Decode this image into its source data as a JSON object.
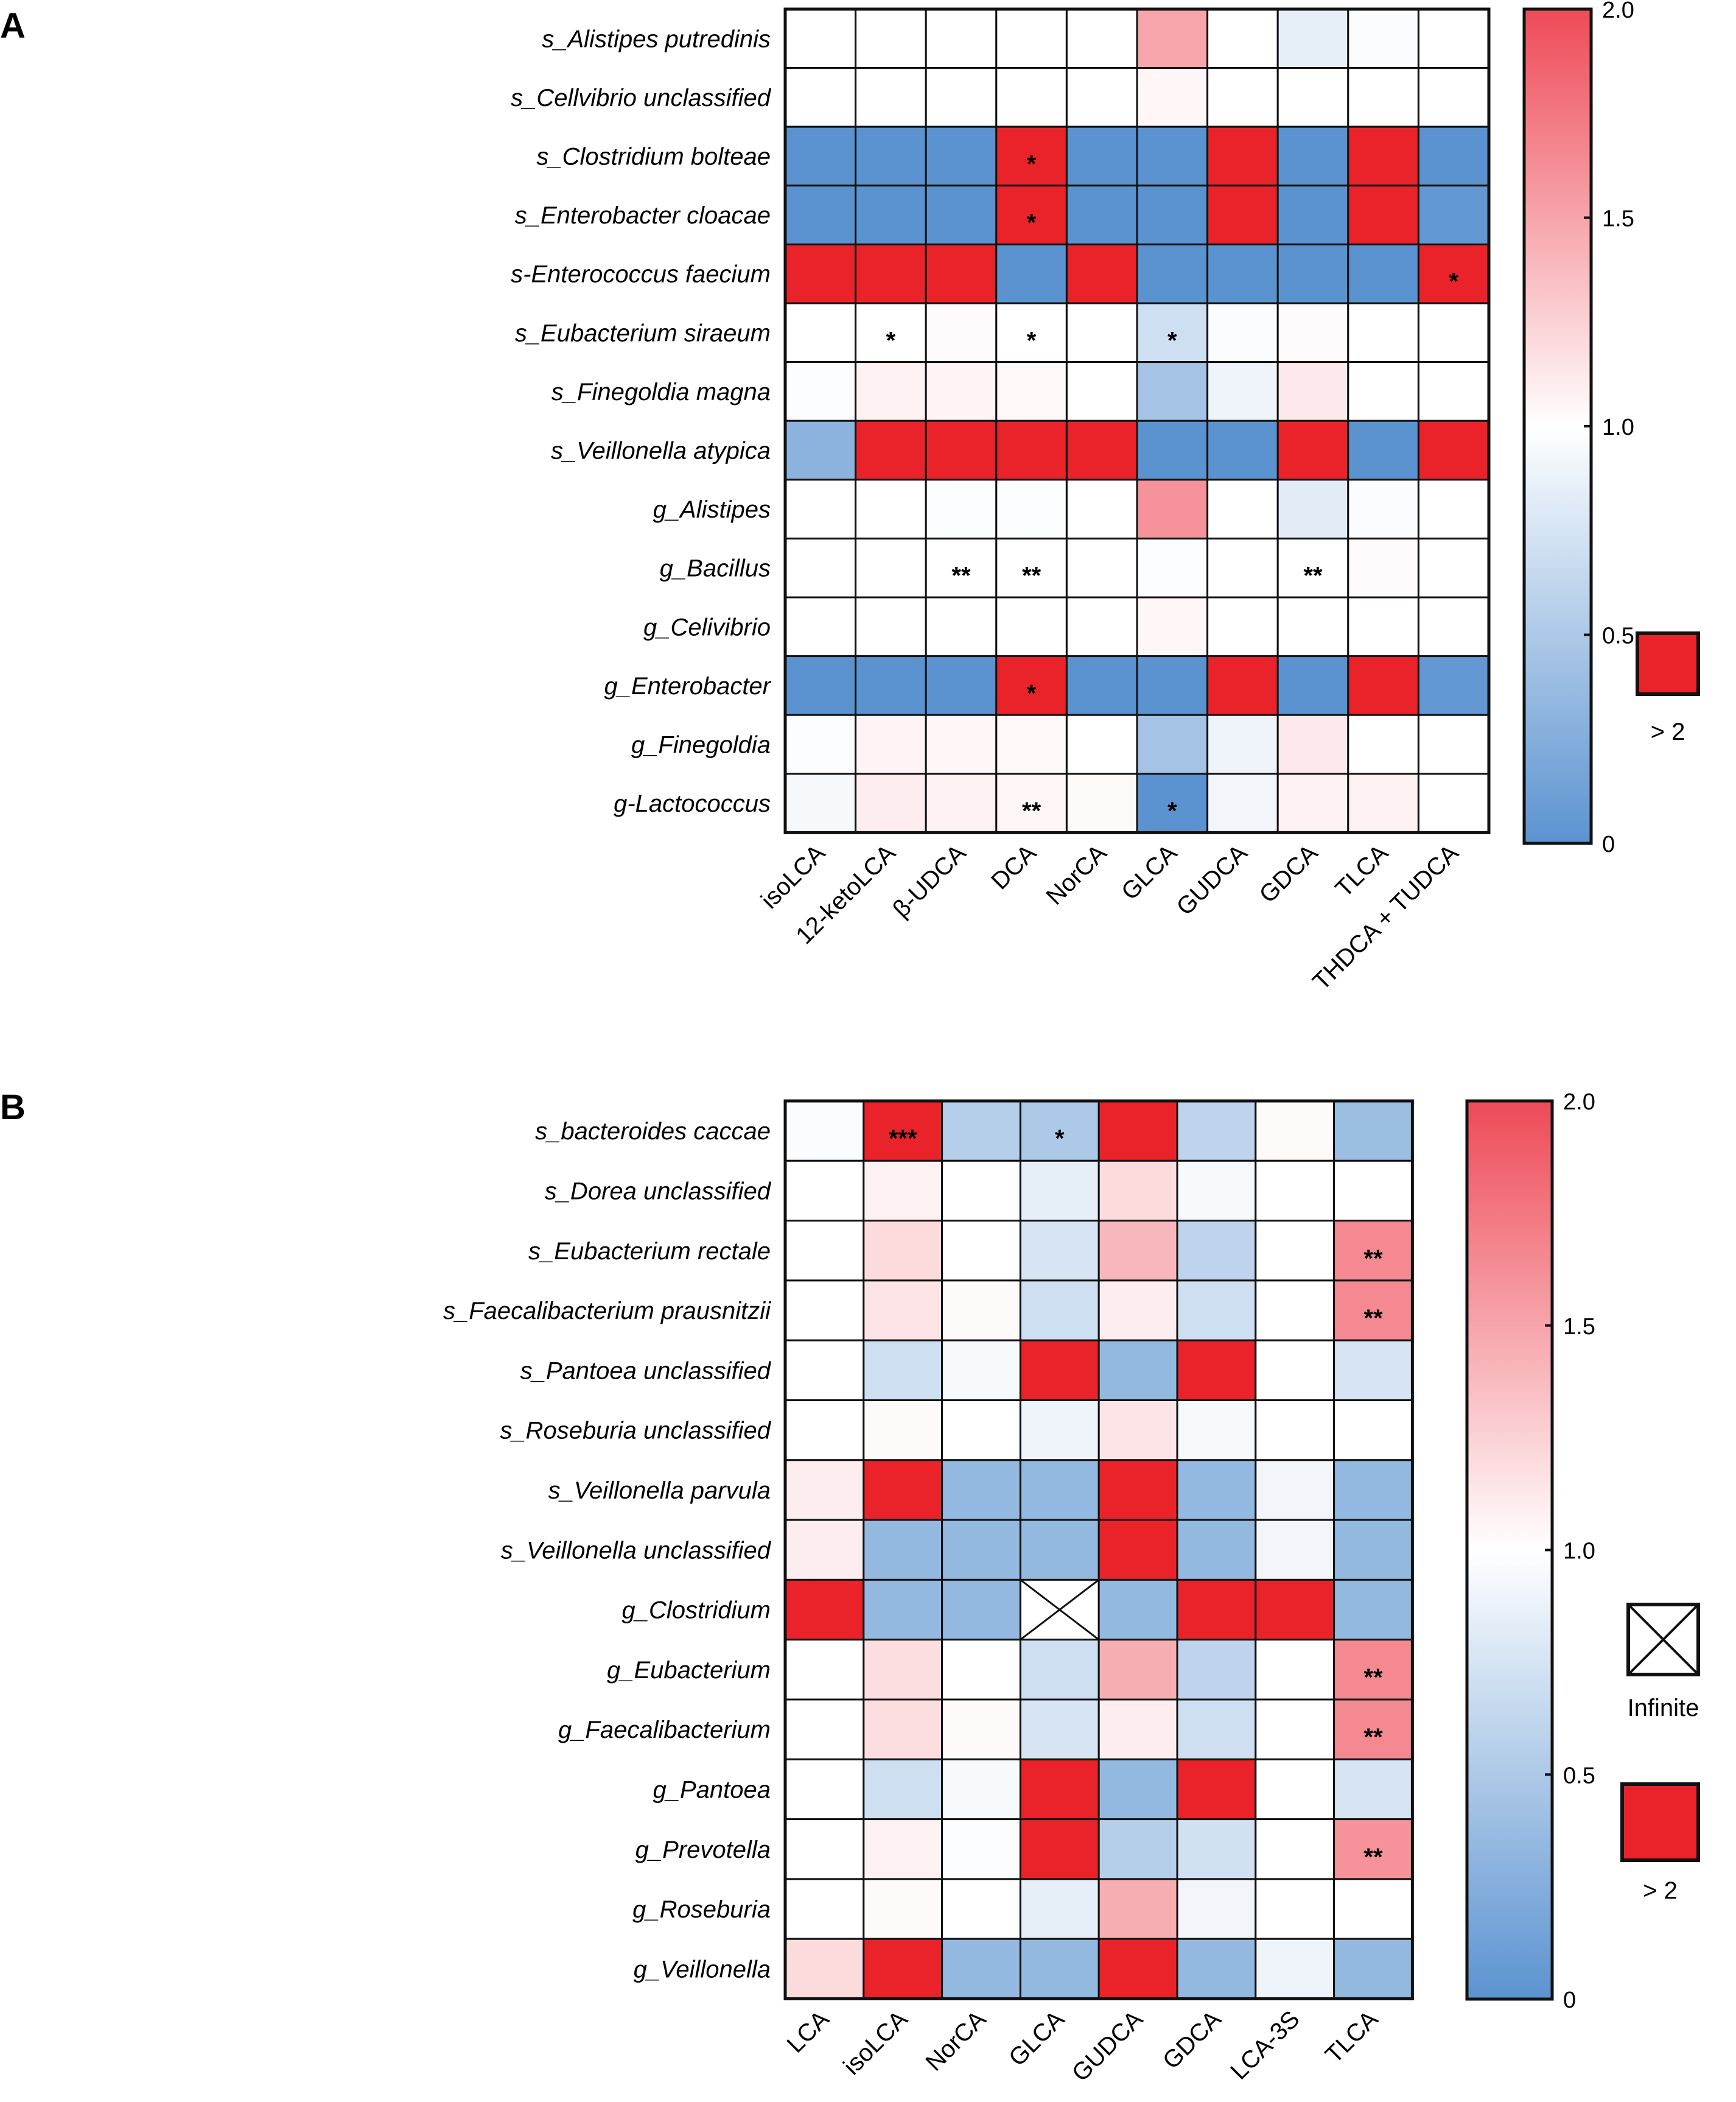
{
  "chart_data": [
    {
      "panel": "A",
      "type": "heatmap",
      "rows": [
        "s_Alistipes putredinis",
        "s_Cellvibrio unclassified",
        "s_Clostridium bolteae",
        "s_Enterobacter cloacae",
        "s-Enterococcus faecium",
        "s_Eubacterium siraeum",
        "s_Finegoldia magna",
        "s_Veillonella atypica",
        "g_Alistipes",
        "g_Bacillus",
        "g_Celivibrio",
        "g_Enterobacter",
        "g_Finegoldia",
        "g-Lactococcus"
      ],
      "columns": [
        "isoLCA",
        "12-ketoLCA",
        "β-UDCA",
        "DCA",
        "NorCA",
        "GLCA",
        "GUDCA",
        "GDCA",
        "TLCA",
        "THDCA + TUDCA"
      ],
      "values": [
        [
          1.0,
          1.0,
          1.0,
          1.0,
          1.0,
          1.5,
          1.0,
          0.85,
          0.97,
          1.0
        ],
        [
          1.0,
          1.0,
          1.0,
          1.0,
          1.0,
          1.05,
          1.0,
          1.0,
          1.0,
          1.0
        ],
        [
          0,
          0,
          0,
          ">2",
          0,
          0,
          ">2",
          0,
          ">2",
          0
        ],
        [
          0,
          0,
          0,
          ">2",
          0,
          0,
          ">2",
          0,
          ">2",
          0.05
        ],
        [
          ">2",
          ">2",
          ">2",
          0,
          ">2",
          0,
          0,
          0,
          0,
          ">2"
        ],
        [
          1.0,
          1.0,
          1.02,
          1.0,
          1.0,
          0.7,
          0.97,
          1.02,
          1.0,
          1.0
        ],
        [
          0.98,
          1.08,
          1.06,
          1.04,
          1.0,
          0.45,
          0.9,
          1.12,
          1.0,
          1.0
        ],
        [
          0.3,
          ">2",
          ">2",
          ">2",
          ">2",
          0,
          0,
          ">2",
          0,
          ">2"
        ],
        [
          1.0,
          1.0,
          0.98,
          0.98,
          1.0,
          1.6,
          1.0,
          0.82,
          0.97,
          1.0
        ],
        [
          1.0,
          1.0,
          1.0,
          1.0,
          1.0,
          0.98,
          1.0,
          1.0,
          1.02,
          1.0
        ],
        [
          1.0,
          1.0,
          1.0,
          1.0,
          1.0,
          1.05,
          1.0,
          1.0,
          1.0,
          1.0
        ],
        [
          0,
          0,
          0,
          ">2",
          0,
          0,
          ">2",
          0,
          ">2",
          0.05
        ],
        [
          0.98,
          1.06,
          1.05,
          1.04,
          1.0,
          0.45,
          0.9,
          1.12,
          1.0,
          1.0
        ],
        [
          0.94,
          1.1,
          1.08,
          1.05,
          1.03,
          0.0,
          0.92,
          1.08,
          1.08,
          1.0
        ]
      ],
      "stars": [
        {
          "row": 2,
          "col": 3,
          "mark": "*"
        },
        {
          "row": 3,
          "col": 3,
          "mark": "*"
        },
        {
          "row": 4,
          "col": 9,
          "mark": "*"
        },
        {
          "row": 5,
          "col": 1,
          "mark": "*"
        },
        {
          "row": 5,
          "col": 3,
          "mark": "*"
        },
        {
          "row": 5,
          "col": 5,
          "mark": "*"
        },
        {
          "row": 9,
          "col": 2,
          "mark": "**"
        },
        {
          "row": 9,
          "col": 3,
          "mark": "**"
        },
        {
          "row": 9,
          "col": 7,
          "mark": "**"
        },
        {
          "row": 11,
          "col": 3,
          "mark": "*"
        },
        {
          "row": 13,
          "col": 3,
          "mark": "**"
        },
        {
          "row": 13,
          "col": 5,
          "mark": "*"
        }
      ],
      "colorbar": {
        "min": 0,
        "max": 2.0,
        "ticks": [
          "0",
          "0.5",
          "1.0",
          "1.5",
          "2.0"
        ]
      },
      "legend": [
        {
          "swatch": "red",
          "label": "> 2"
        }
      ]
    },
    {
      "panel": "B",
      "type": "heatmap",
      "rows": [
        "s_bacteroides caccae",
        "s_Dorea unclassified",
        "s_Eubacterium rectale",
        "s_Faecalibacterium prausnitzii",
        "s_Pantoea unclassified",
        "s_Roseburia unclassified",
        "s_Veillonella parvula",
        "s_Veillonella unclassified",
        "g_Clostridium",
        "g_Eubacterium",
        "g_Faecalibacterium",
        "g_Pantoea",
        "g_Prevotella",
        "g_Roseburia",
        "g_Veillonella"
      ],
      "columns": [
        "LCA",
        "isoLCA",
        "NorCA",
        "GLCA",
        "GUDCA",
        "GDCA",
        "LCA-3S",
        "TLCA"
      ],
      "values": [
        [
          0.97,
          ">2",
          0.55,
          0.5,
          ">2",
          0.6,
          1.03,
          0.4
        ],
        [
          1.0,
          1.08,
          1.0,
          0.85,
          1.2,
          0.95,
          1.0,
          1.0
        ],
        [
          1.0,
          1.2,
          1.0,
          0.75,
          1.4,
          0.6,
          1.0,
          1.65
        ],
        [
          1.0,
          1.15,
          1.03,
          0.7,
          1.1,
          0.7,
          1.0,
          1.65
        ],
        [
          1.0,
          0.7,
          0.95,
          ">2",
          0.35,
          ">2",
          1.0,
          0.75
        ],
        [
          1.0,
          1.03,
          1.0,
          0.9,
          1.15,
          0.95,
          1.0,
          1.0
        ],
        [
          1.1,
          ">2",
          0.35,
          0.35,
          ">2",
          0.35,
          0.92,
          0.35
        ],
        [
          1.1,
          0.35,
          0.35,
          0.35,
          ">2",
          0.35,
          0.92,
          0.35
        ],
        [
          ">2",
          0.35,
          0.35,
          "infinite",
          0.35,
          ">2",
          ">2",
          0.35
        ],
        [
          1.0,
          1.18,
          1.0,
          0.7,
          1.45,
          0.6,
          1.0,
          1.65
        ],
        [
          1.0,
          1.18,
          1.03,
          0.75,
          1.1,
          0.7,
          1.0,
          1.65
        ],
        [
          1.0,
          0.7,
          0.95,
          ">2",
          0.35,
          ">2",
          1.0,
          0.75
        ],
        [
          1.0,
          1.08,
          0.98,
          ">2",
          0.55,
          0.72,
          1.0,
          1.6
        ],
        [
          1.0,
          1.03,
          1.0,
          0.85,
          1.45,
          0.92,
          1.0,
          1.0
        ],
        [
          1.2,
          ">2",
          0.35,
          0.35,
          ">2",
          0.35,
          0.9,
          0.35
        ]
      ],
      "stars": [
        {
          "row": 0,
          "col": 1,
          "mark": "***"
        },
        {
          "row": 0,
          "col": 3,
          "mark": "*"
        },
        {
          "row": 2,
          "col": 7,
          "mark": "**"
        },
        {
          "row": 3,
          "col": 7,
          "mark": "**"
        },
        {
          "row": 9,
          "col": 7,
          "mark": "**"
        },
        {
          "row": 10,
          "col": 7,
          "mark": "**"
        },
        {
          "row": 12,
          "col": 7,
          "mark": "**"
        }
      ],
      "colorbar": {
        "min": 0,
        "max": 2.0,
        "ticks": [
          "0",
          "0.5",
          "1.0",
          "1.5",
          "2.0"
        ]
      },
      "legend": [
        {
          "swatch": "cross",
          "label": "Infinite"
        },
        {
          "swatch": "red",
          "label": "> 2"
        }
      ]
    }
  ],
  "colors": {
    "low": "#5b93d0",
    "mid": "#ffffff",
    "high": "#ee4a57",
    "over": "#ea2229",
    "border": "#111111"
  }
}
